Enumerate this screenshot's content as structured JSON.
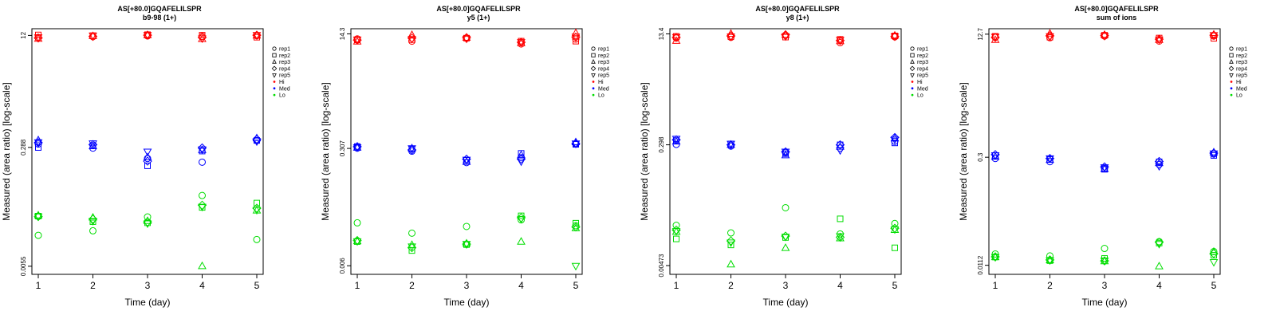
{
  "chart_data": [
    {
      "type": "scatter",
      "title": "AS[+80.0]GQAFELILSPR",
      "subtitle": "b9-98 (1+)",
      "xlabel": "Time (day)",
      "ylabel": "Measured (area ratio) [log-scale]",
      "x_ticks": [
        1,
        2,
        3,
        4,
        5
      ],
      "y_ticks": [
        {
          "value": 12,
          "label": "12"
        },
        {
          "value": 0.288,
          "label": "0.288"
        },
        {
          "value": 0.0055,
          "label": "0.0055"
        }
      ],
      "ylim": [
        0.0042,
        15
      ],
      "yscale": "log",
      "legend": {
        "placement": "right",
        "reps": [
          "rep1",
          "rep2",
          "rep3",
          "rep4",
          "rep5"
        ],
        "levels": [
          {
            "name": "Hi",
            "color": "#ff0000"
          },
          {
            "name": "Med",
            "color": "#0000ff"
          },
          {
            "name": "Lo",
            "color": "#00dd00"
          }
        ]
      },
      "series": [
        {
          "level": "Hi",
          "color": "#ff0000",
          "reps": [
            [
              11.2,
              11.5,
              11.8,
              11.6,
              11.9
            ],
            [
              12.2,
              11.9,
              12.3,
              12.1,
              11.3
            ],
            [
              10.7,
              11.7,
              12.0,
              10.6,
              11.9
            ],
            [
              11.0,
              11.6,
              12.1,
              11.2,
              12.1
            ],
            [
              11.3,
              12.0,
              12.2,
              10.9,
              12.2
            ]
          ]
        },
        {
          "level": "Med",
          "color": "#0000ff",
          "reps": [
            [
              0.322,
              0.281,
              0.199,
              0.176,
              0.363
            ],
            [
              0.287,
              0.306,
              0.156,
              0.255,
              0.363
            ],
            [
              0.364,
              0.298,
              0.206,
              0.263,
              0.389
            ],
            [
              0.337,
              0.316,
              0.182,
              0.283,
              0.378
            ],
            [
              0.343,
              0.331,
              0.251,
              0.271,
              0.353
            ]
          ]
        },
        {
          "level": "Lo",
          "color": "#00dd00",
          "reps": [
            [
              0.0154,
              0.0179,
              0.0284,
              0.058,
              0.0134
            ],
            [
              0.0292,
              0.0243,
              0.0234,
              0.039,
              0.0451
            ],
            [
              0.0298,
              0.0277,
              0.0247,
              0.0055,
              0.0351
            ],
            [
              0.0288,
              0.0264,
              0.024,
              0.042,
              0.038
            ],
            [
              0.029,
              0.025,
              0.023,
              0.04,
              0.036
            ]
          ]
        }
      ]
    },
    {
      "type": "scatter",
      "title": "AS[+80.0]GQAFELILSPR",
      "subtitle": "y5 (1+)",
      "xlabel": "Time (day)",
      "ylabel": "Measured (area ratio) [log-scale]",
      "x_ticks": [
        1,
        2,
        3,
        4,
        5
      ],
      "y_ticks": [
        {
          "value": 14.3,
          "label": "14.3"
        },
        {
          "value": 0.307,
          "label": "0.307"
        },
        {
          "value": 0.006,
          "label": "0.006"
        }
      ],
      "ylim": [
        0.0045,
        17
      ],
      "yscale": "log",
      "legend": {
        "placement": "right",
        "reps": [
          "rep1",
          "rep2",
          "rep3",
          "rep4",
          "rep5"
        ],
        "levels": [
          {
            "name": "Hi",
            "color": "#ff0000"
          },
          {
            "name": "Med",
            "color": "#0000ff"
          },
          {
            "name": "Lo",
            "color": "#00dd00"
          }
        ]
      },
      "series": [
        {
          "level": "Hi",
          "color": "#ff0000",
          "reps": [
            [
              12.1,
              11.2,
              12.3,
              10.2,
              12.0
            ],
            [
              11.7,
              11.8,
              12.4,
              11.2,
              11.2
            ],
            [
              11.0,
              13.7,
              12.5,
              10.4,
              14.6
            ],
            [
              11.6,
              12.4,
              12.6,
              10.8,
              12.8
            ],
            [
              11.9,
              12.1,
              12.2,
              10.9,
              13.1
            ]
          ]
        },
        {
          "level": "Med",
          "color": "#0000ff",
          "reps": [
            [
              0.31,
              0.28,
              0.191,
              0.225,
              0.356
            ],
            [
              0.327,
              0.299,
              0.206,
              0.26,
              0.352
            ],
            [
              0.313,
              0.307,
              0.195,
              0.244,
              0.376
            ],
            [
              0.326,
              0.292,
              0.214,
              0.215,
              0.361
            ],
            [
              0.32,
              0.31,
              0.211,
              0.199,
              0.364
            ]
          ]
        },
        {
          "level": "Lo",
          "color": "#00dd00",
          "reps": [
            [
              0.0253,
              0.0179,
              0.0224,
              0.028,
              0.023
            ],
            [
              0.0135,
              0.01,
              0.0122,
              0.032,
              0.025
            ],
            [
              0.0136,
              0.012,
              0.0126,
              0.0134,
              0.021
            ],
            [
              0.014,
              0.011,
              0.0124,
              0.03,
              0.022
            ],
            [
              0.0137,
              0.0115,
              0.0125,
              0.029,
              0.006
            ]
          ]
        }
      ]
    },
    {
      "type": "scatter",
      "title": "AS[+80.0]GQAFELILSPR",
      "subtitle": "y8 (1+)",
      "xlabel": "Time (day)",
      "ylabel": "Measured (area ratio) [log-scale]",
      "x_ticks": [
        1,
        2,
        3,
        4,
        5
      ],
      "y_ticks": [
        {
          "value": 13.4,
          "label": "13.4"
        },
        {
          "value": 0.298,
          "label": "0.298"
        },
        {
          "value": 0.00473,
          "label": "0.00473"
        }
      ],
      "ylim": [
        0.0035,
        16
      ],
      "yscale": "log",
      "legend": {
        "placement": "right",
        "reps": [
          "rep1",
          "rep2",
          "rep3",
          "rep4",
          "rep5"
        ],
        "levels": [
          {
            "name": "Hi",
            "color": "#ff0000"
          },
          {
            "name": "Med",
            "color": "#0000ff"
          },
          {
            "name": "Lo",
            "color": "#00dd00"
          }
        ]
      },
      "series": [
        {
          "level": "Hi",
          "color": "#ff0000",
          "reps": [
            [
              11.6,
              11.9,
              12.7,
              9.9,
              12.1
            ],
            [
              12.3,
              12.2,
              12.0,
              11.1,
              12.5
            ],
            [
              10.5,
              13.4,
              12.9,
              10.4,
              12.6
            ],
            [
              11.9,
              12.5,
              13.0,
              10.7,
              12.3
            ],
            [
              12.1,
              12.3,
              12.4,
              10.9,
              12.4
            ]
          ]
        },
        {
          "level": "Med",
          "color": "#0000ff",
          "reps": [
            [
              0.302,
              0.285,
              0.229,
              0.266,
              0.336
            ],
            [
              0.344,
              0.307,
              0.22,
              0.298,
              0.318
            ],
            [
              0.332,
              0.297,
              0.207,
              0.278,
              0.371
            ],
            [
              0.354,
              0.298,
              0.234,
              0.298,
              0.383
            ],
            [
              0.368,
              0.31,
              0.237,
              0.248,
              0.358
            ]
          ]
        },
        {
          "level": "Lo",
          "color": "#00dd00",
          "reps": [
            [
              0.0188,
              0.0145,
              0.0344,
              0.014,
              0.02
            ],
            [
              0.0118,
              0.0096,
              0.0124,
              0.0235,
              0.0087
            ],
            [
              0.015,
              0.0049,
              0.0086,
              0.012,
              0.016
            ],
            [
              0.016,
              0.011,
              0.013,
              0.0125,
              0.017
            ],
            [
              0.0155,
              0.0105,
              0.0128,
              0.013,
              0.0165
            ]
          ]
        }
      ]
    },
    {
      "type": "scatter",
      "title": "AS[+80.0]GQAFELILSPR",
      "subtitle": "sum of ions",
      "xlabel": "Time (day)",
      "ylabel": "Measured (area ratio) [log-scale]",
      "x_ticks": [
        1,
        2,
        3,
        4,
        5
      ],
      "y_ticks": [
        {
          "value": 12.7,
          "label": "12.7"
        },
        {
          "value": 0.3,
          "label": "0.3"
        },
        {
          "value": 0.0112,
          "label": "0.0112"
        }
      ],
      "ylim": [
        0.0085,
        15
      ],
      "yscale": "log",
      "legend": {
        "placement": "right",
        "reps": [
          "rep1",
          "rep2",
          "rep3",
          "rep4",
          "rep5"
        ],
        "levels": [
          {
            "name": "Hi",
            "color": "#ff0000"
          },
          {
            "name": "Med",
            "color": "#0000ff"
          },
          {
            "name": "Lo",
            "color": "#00dd00"
          }
        ]
      },
      "series": [
        {
          "level": "Hi",
          "color": "#ff0000",
          "reps": [
            [
              11.6,
              11.4,
              12.0,
              10.3,
              12.0
            ],
            [
              11.9,
              11.6,
              12.3,
              11.3,
              11.2
            ],
            [
              10.6,
              12.9,
              12.4,
              10.6,
              12.5
            ],
            [
              11.5,
              12.1,
              12.2,
              10.9,
              12.3
            ],
            [
              11.8,
              12.0,
              12.1,
              10.8,
              12.4
            ]
          ]
        },
        {
          "level": "Med",
          "color": "#0000ff",
          "reps": [
            [
              0.289,
              0.262,
              0.214,
              0.241,
              0.331
            ],
            [
              0.315,
              0.281,
              0.208,
              0.261,
              0.317
            ],
            [
              0.303,
              0.276,
              0.209,
              0.25,
              0.346
            ],
            [
              0.325,
              0.289,
              0.224,
              0.264,
              0.34
            ],
            [
              0.32,
              0.291,
              0.222,
              0.23,
              0.338
            ]
          ]
        },
        {
          "level": "Lo",
          "color": "#00dd00",
          "reps": [
            [
              0.0158,
              0.0149,
              0.0187,
              0.023,
              0.017
            ],
            [
              0.0144,
              0.0129,
              0.0138,
              0.022,
              0.0152
            ],
            [
              0.0143,
              0.013,
              0.0126,
              0.0108,
              0.0168
            ],
            [
              0.0145,
              0.0132,
              0.0128,
              0.0225,
              0.016
            ],
            [
              0.0144,
              0.0131,
              0.013,
              0.0215,
              0.0124
            ]
          ]
        }
      ]
    }
  ]
}
